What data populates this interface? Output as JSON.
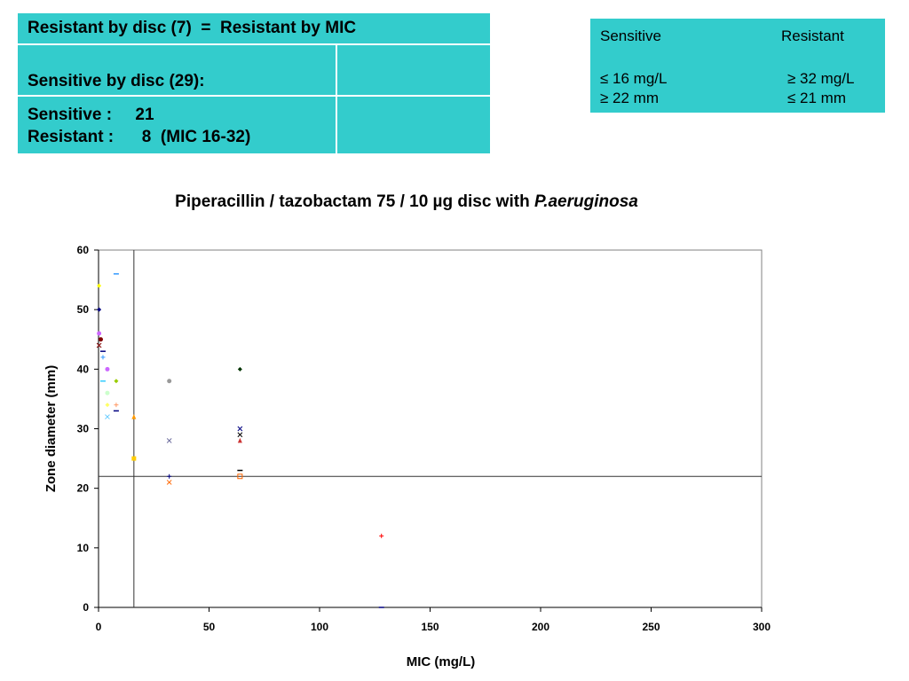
{
  "summary_table": {
    "row1": "Resistant by disc (7)  =  Resistant by MIC",
    "row2": "Sensitive by disc (29):",
    "row3_line1": "Sensitive :     21",
    "row3_line2": "Resistant :      8  (MIC 16-32)"
  },
  "breakpoint_table": {
    "sensitive_header": "Sensitive",
    "resistant_header": "Resistant",
    "sensitive_mic": "≤ 16 mg/L",
    "resistant_mic": "≥ 32 mg/L",
    "sensitive_zone": "≥ 22 mm",
    "resistant_zone": "≤ 21 mm"
  },
  "chart_title_main": "Piperacillin / tazobactam 75 / 10 µg disc with ",
  "chart_title_organism": "P.aeruginosa",
  "chart_data": {
    "type": "scatter",
    "title": "Piperacillin / tazobactam 75 / 10 µg disc with P.aeruginosa",
    "xlabel": "MIC (mg/L)",
    "ylabel": "Zone diameter (mm)",
    "xlim": [
      0,
      300
    ],
    "ylim": [
      0,
      60
    ],
    "xticks": [
      0,
      50,
      100,
      150,
      200,
      250,
      300
    ],
    "yticks": [
      0,
      10,
      20,
      30,
      40,
      50,
      60
    ],
    "breakpoint_lines": {
      "x": 16,
      "y": 22
    },
    "points": [
      {
        "x": 0.25,
        "y": 54,
        "color": "#ffff00",
        "marker": "diamond"
      },
      {
        "x": 0.25,
        "y": 50,
        "color": "#000080",
        "marker": "diamond"
      },
      {
        "x": 0.25,
        "y": 46,
        "color": "#cc66ff",
        "marker": "circle"
      },
      {
        "x": 0.25,
        "y": 44,
        "color": "#800000",
        "marker": "x"
      },
      {
        "x": 1,
        "y": 45,
        "color": "#800000",
        "marker": "circle"
      },
      {
        "x": 2,
        "y": 43,
        "color": "#000080",
        "marker": "dash"
      },
      {
        "x": 2,
        "y": 42,
        "color": "#3399ff",
        "marker": "plus"
      },
      {
        "x": 2,
        "y": 38,
        "color": "#33ccff",
        "marker": "dash"
      },
      {
        "x": 4,
        "y": 40,
        "color": "#cc66ff",
        "marker": "circle"
      },
      {
        "x": 4,
        "y": 36,
        "color": "#ccffcc",
        "marker": "circle"
      },
      {
        "x": 4,
        "y": 34,
        "color": "#ffff66",
        "marker": "diamond"
      },
      {
        "x": 4,
        "y": 32,
        "color": "#66ccff",
        "marker": "x"
      },
      {
        "x": 8,
        "y": 56,
        "color": "#3399ff",
        "marker": "dash"
      },
      {
        "x": 8,
        "y": 38,
        "color": "#99cc00",
        "marker": "diamond"
      },
      {
        "x": 8,
        "y": 34,
        "color": "#ff9966",
        "marker": "plus"
      },
      {
        "x": 8,
        "y": 33,
        "color": "#000080",
        "marker": "dash"
      },
      {
        "x": 16,
        "y": 32,
        "color": "#ff9900",
        "marker": "triangle"
      },
      {
        "x": 16,
        "y": 25,
        "color": "#ffcc00",
        "marker": "square"
      },
      {
        "x": 32,
        "y": 38,
        "color": "#999999",
        "marker": "circle"
      },
      {
        "x": 32,
        "y": 28,
        "color": "#666699",
        "marker": "x"
      },
      {
        "x": 32,
        "y": 22,
        "color": "#000080",
        "marker": "plus"
      },
      {
        "x": 32,
        "y": 21,
        "color": "#ff6600",
        "marker": "x"
      },
      {
        "x": 64,
        "y": 40,
        "color": "#003300",
        "marker": "diamond"
      },
      {
        "x": 64,
        "y": 30,
        "color": "#000080",
        "marker": "x"
      },
      {
        "x": 64,
        "y": 29,
        "color": "#000000",
        "marker": "x"
      },
      {
        "x": 64,
        "y": 28,
        "color": "#cc3333",
        "marker": "triangle"
      },
      {
        "x": 64,
        "y": 23,
        "color": "#000000",
        "marker": "dash"
      },
      {
        "x": 64,
        "y": 22,
        "color": "#ff6600",
        "marker": "hollow-square"
      },
      {
        "x": 128,
        "y": 12,
        "color": "#ff0000",
        "marker": "plus"
      },
      {
        "x": 128,
        "y": 0,
        "color": "#000080",
        "marker": "dash"
      }
    ]
  }
}
